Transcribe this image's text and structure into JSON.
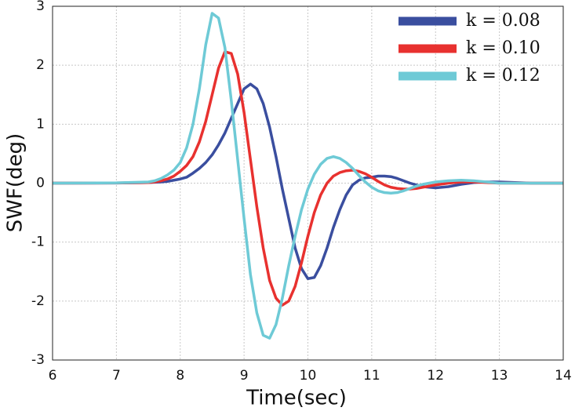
{
  "chart_data": {
    "type": "line",
    "xlabel": "Time(sec)",
    "ylabel": "SWF(deg)",
    "xlim": [
      6,
      14
    ],
    "ylim": [
      -3,
      3
    ],
    "xticks": [
      6,
      7,
      8,
      9,
      10,
      11,
      12,
      13,
      14
    ],
    "yticks": [
      -3,
      -2,
      -1,
      0,
      1,
      2,
      3
    ],
    "grid": true,
    "legend": "upper right",
    "x": [
      6,
      7,
      7.5,
      7.6,
      7.7,
      7.8,
      7.9,
      8,
      8.1,
      8.2,
      8.3,
      8.4,
      8.5,
      8.6,
      8.7,
      8.8,
      8.9,
      9,
      9.1,
      9.2,
      9.3,
      9.4,
      9.5,
      9.6,
      9.7,
      9.8,
      9.9,
      10,
      10.1,
      10.2,
      10.3,
      10.4,
      10.5,
      10.6,
      10.7,
      10.8,
      10.9,
      11,
      11.1,
      11.2,
      11.3,
      11.4,
      11.5,
      11.6,
      11.7,
      11.8,
      11.9,
      12,
      12.2,
      12.4,
      12.6,
      12.8,
      13,
      13.5,
      14
    ],
    "series": [
      {
        "name": "k = 0.08",
        "color": "#3a4e9f",
        "values": [
          0,
          0.002,
          0.01,
          0.015,
          0.02,
          0.03,
          0.05,
          0.07,
          0.1,
          0.17,
          0.25,
          0.35,
          0.48,
          0.65,
          0.85,
          1.1,
          1.35,
          1.6,
          1.68,
          1.6,
          1.35,
          0.95,
          0.45,
          -0.1,
          -0.6,
          -1.1,
          -1.45,
          -1.62,
          -1.6,
          -1.4,
          -1.1,
          -0.75,
          -0.45,
          -0.2,
          -0.03,
          0.05,
          0.09,
          0.1,
          0.12,
          0.12,
          0.11,
          0.08,
          0.04,
          0,
          -0.03,
          -0.06,
          -0.07,
          -0.08,
          -0.06,
          -0.02,
          0.01,
          0.02,
          0.02,
          0,
          0
        ]
      },
      {
        "name": "k = 0.10",
        "color": "#e8312f",
        "values": [
          0,
          0.003,
          0.01,
          0.02,
          0.04,
          0.07,
          0.12,
          0.2,
          0.3,
          0.45,
          0.7,
          1.05,
          1.5,
          1.95,
          2.23,
          2.2,
          1.85,
          1.2,
          0.4,
          -0.4,
          -1.1,
          -1.65,
          -1.95,
          -2.07,
          -2.0,
          -1.75,
          -1.35,
          -0.9,
          -0.5,
          -0.2,
          0,
          0.12,
          0.18,
          0.21,
          0.22,
          0.2,
          0.16,
          0.1,
          0.03,
          -0.03,
          -0.07,
          -0.09,
          -0.1,
          -0.1,
          -0.09,
          -0.07,
          -0.05,
          -0.03,
          0,
          0.02,
          0.02,
          0.01,
          0,
          0,
          0
        ]
      },
      {
        "name": "k = 0.12",
        "color": "#6ecad6",
        "values": [
          0,
          0.005,
          0.02,
          0.04,
          0.08,
          0.14,
          0.22,
          0.35,
          0.6,
          1.0,
          1.6,
          2.35,
          2.88,
          2.8,
          2.3,
          1.4,
          0.4,
          -0.6,
          -1.55,
          -2.2,
          -2.58,
          -2.63,
          -2.4,
          -1.95,
          -1.4,
          -0.9,
          -0.45,
          -0.1,
          0.15,
          0.32,
          0.42,
          0.45,
          0.42,
          0.35,
          0.25,
          0.13,
          0.02,
          -0.07,
          -0.13,
          -0.16,
          -0.17,
          -0.16,
          -0.13,
          -0.09,
          -0.05,
          -0.02,
          0,
          0.02,
          0.04,
          0.05,
          0.04,
          0.02,
          0,
          0,
          0
        ]
      }
    ]
  }
}
